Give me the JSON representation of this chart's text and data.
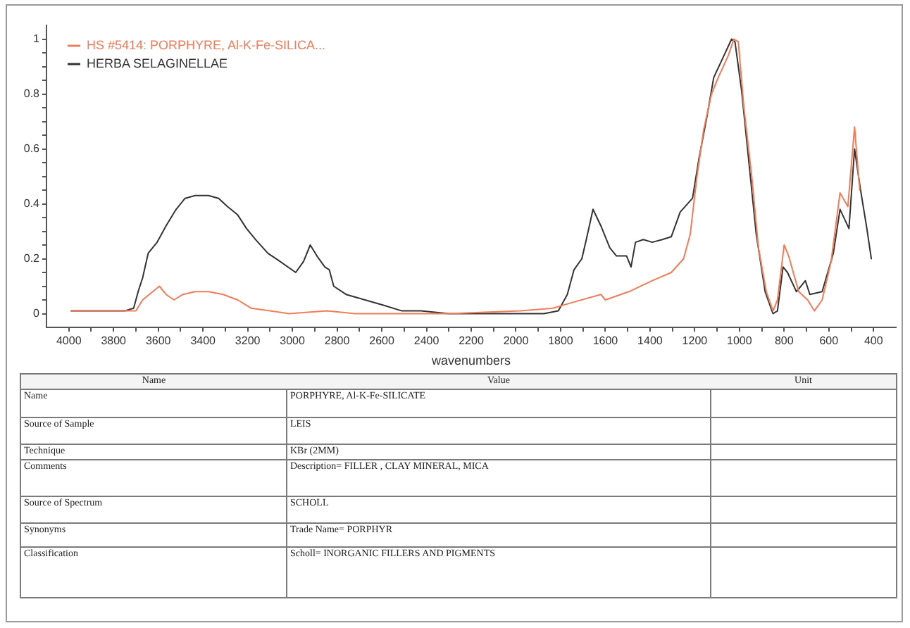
{
  "chart_data": {
    "type": "line",
    "xlabel": "wavenumbers",
    "legend": "top left",
    "xlim": [
      4100,
      300
    ],
    "ylim": [
      -0.05,
      1.05
    ],
    "xticks": [
      4000,
      {
        "value": 3900,
        "label": null
      },
      3800,
      {
        "value": 3700,
        "label": null
      },
      3600,
      {
        "value": 3500,
        "label": null
      },
      3400,
      {
        "value": 3300,
        "label": null
      },
      3200,
      {
        "value": 3100,
        "label": null
      },
      3000,
      {
        "value": 2900,
        "label": null
      },
      2800,
      {
        "value": 2700,
        "label": null
      },
      2600,
      {
        "value": 2500,
        "label": null
      },
      2400,
      {
        "value": 2300,
        "label": null
      },
      2200,
      {
        "value": 2100,
        "label": null
      },
      2000,
      {
        "value": 1900,
        "label": null
      },
      1800,
      {
        "value": 1700,
        "label": null
      },
      1600,
      {
        "value": 1500,
        "label": null
      },
      1400,
      {
        "value": 1300,
        "label": null
      },
      1200,
      {
        "value": 1100,
        "label": null
      },
      1000,
      {
        "value": 900,
        "label": null
      },
      800,
      {
        "value": 700,
        "label": null
      },
      600,
      {
        "value": 500,
        "label": null
      },
      400
    ],
    "yticks": [
      0,
      {
        "value": 0.05,
        "label": null
      },
      {
        "value": 0.1,
        "label": null
      },
      {
        "value": 0.15,
        "label": null
      },
      0.2,
      {
        "value": 0.25,
        "label": null
      },
      {
        "value": 0.3,
        "label": null
      },
      {
        "value": 0.35,
        "label": null
      },
      0.4,
      {
        "value": 0.45,
        "label": null
      },
      {
        "value": 0.5,
        "label": null
      },
      {
        "value": 0.55,
        "label": null
      },
      0.6,
      {
        "value": 0.65,
        "label": null
      },
      {
        "value": 0.7,
        "label": null
      },
      {
        "value": 0.75,
        "label": null
      },
      0.8,
      {
        "value": 0.85,
        "label": null
      },
      {
        "value": 0.9,
        "label": null
      },
      {
        "value": 0.95,
        "label": null
      },
      1
    ],
    "series": [
      {
        "name": "HS #5414: PORPHYRE, Al-K-Fe-SILICA...",
        "color": "#f07d5a",
        "x": [
          3990,
          3765,
          3700,
          3670,
          3625,
          3595,
          3565,
          3530,
          3490,
          3435,
          3375,
          3310,
          3245,
          3185,
          3100,
          3015,
          2845,
          2720,
          2425,
          2300,
          1980,
          1835,
          1750,
          1620,
          1600,
          1495,
          1390,
          1305,
          1250,
          1220,
          1190,
          1160,
          1125,
          1095,
          1050,
          1025,
          1005,
          980,
          945,
          915,
          880,
          850,
          830,
          800,
          780,
          735,
          695,
          665,
          630,
          590,
          550,
          515,
          485,
          462
        ],
        "values": [
          0.01,
          0.01,
          0.01,
          0.05,
          0.08,
          0.1,
          0.07,
          0.05,
          0.07,
          0.08,
          0.08,
          0.07,
          0.05,
          0.02,
          0.01,
          0.0,
          0.01,
          0.0,
          0.0,
          0.0,
          0.01,
          0.02,
          0.04,
          0.07,
          0.05,
          0.08,
          0.12,
          0.15,
          0.2,
          0.29,
          0.5,
          0.67,
          0.8,
          0.86,
          0.94,
          1.0,
          0.99,
          0.75,
          0.5,
          0.24,
          0.08,
          0.01,
          0.05,
          0.25,
          0.21,
          0.08,
          0.05,
          0.01,
          0.05,
          0.19,
          0.44,
          0.39,
          0.68,
          0.45
        ]
      },
      {
        "name": "HERBA SELAGINELLAE",
        "color": "#333333",
        "x": [
          3990,
          3750,
          3710,
          3690,
          3670,
          3645,
          3605,
          3565,
          3520,
          3480,
          3435,
          3375,
          3330,
          3290,
          3245,
          3205,
          3165,
          3110,
          3055,
          2985,
          2950,
          2920,
          2890,
          2855,
          2835,
          2815,
          2760,
          2675,
          2590,
          2510,
          2425,
          2300,
          1875,
          1810,
          1770,
          1740,
          1705,
          1685,
          1655,
          1620,
          1580,
          1550,
          1505,
          1485,
          1465,
          1430,
          1390,
          1345,
          1305,
          1265,
          1210,
          1180,
          1145,
          1115,
          1075,
          1035,
          1020,
          990,
          960,
          925,
          885,
          850,
          830,
          805,
          785,
          745,
          705,
          685,
          630,
          580,
          550,
          510,
          485,
          460,
          430,
          410
        ],
        "values": [
          0.01,
          0.01,
          0.02,
          0.08,
          0.13,
          0.22,
          0.26,
          0.32,
          0.38,
          0.42,
          0.43,
          0.43,
          0.42,
          0.39,
          0.36,
          0.31,
          0.27,
          0.22,
          0.19,
          0.15,
          0.19,
          0.25,
          0.21,
          0.17,
          0.16,
          0.1,
          0.07,
          0.05,
          0.03,
          0.01,
          0.01,
          0.0,
          0.0,
          0.01,
          0.07,
          0.16,
          0.2,
          0.27,
          0.38,
          0.32,
          0.24,
          0.21,
          0.21,
          0.17,
          0.26,
          0.27,
          0.26,
          0.27,
          0.28,
          0.37,
          0.42,
          0.57,
          0.72,
          0.86,
          0.93,
          1.0,
          0.99,
          0.81,
          0.57,
          0.29,
          0.08,
          0.0,
          0.01,
          0.17,
          0.15,
          0.08,
          0.12,
          0.07,
          0.08,
          0.22,
          0.38,
          0.31,
          0.6,
          0.46,
          0.31,
          0.2
        ]
      }
    ],
    "annotations": [
      "Name",
      "Value",
      "Unit",
      "Name",
      "PORPHYRE, Al-K-Fe-SILICATE",
      "Source of Sample",
      "LEIS",
      "Technique",
      "KBr (2MM)",
      "Comments",
      "Description= FILLER , CLAY MINERAL, MICA",
      "Source of Spectrum",
      "SCHOLL",
      "Synonyms",
      "Trade Name= PORPHYR",
      "Classification",
      "Scholl= INORGANIC FILLERS AND PIGMENTS"
    ]
  }
}
